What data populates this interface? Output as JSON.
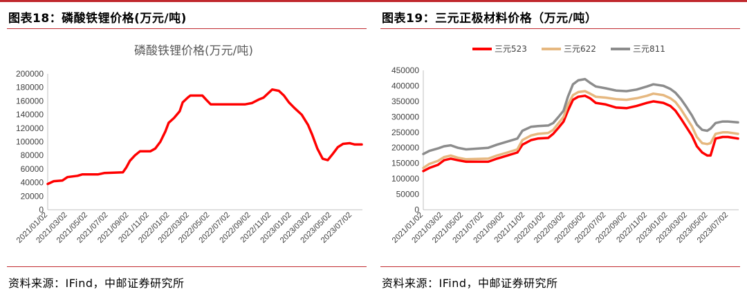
{
  "left_panel": {
    "heading": "图表18：磷酸铁锂价格(万元/吨)",
    "source": "资料来源：IFind，中邮证券研究所"
  },
  "right_panel": {
    "heading": "图表19：三元正极材料价格（万元/吨）",
    "source": "资料来源：IFind，中邮证券研究所"
  },
  "colors": {
    "accent_rule": "#c0282d",
    "ncm523": "#ff0000",
    "ncm622": "#e6b880",
    "ncm811": "#8c8c8c",
    "lfp": "#ff0000"
  },
  "chart_data": [
    {
      "type": "line",
      "title": "磷酸铁锂价格(万元/吨)",
      "xlabel": "",
      "ylabel": "",
      "ylim": [
        0,
        200000
      ],
      "yticks": [
        0,
        20000,
        40000,
        60000,
        80000,
        100000,
        120000,
        140000,
        160000,
        180000,
        200000
      ],
      "xticks": [
        "2021/01/02",
        "2021/03/02",
        "2021/05/02",
        "2021/07/02",
        "2021/09/02",
        "2021/11/02",
        "2022/01/02",
        "2022/03/02",
        "2022/05/02",
        "2022/07/02",
        "2022/09/02",
        "2022/11/02",
        "2023/01/02",
        "2023/03/02",
        "2023/05/02",
        "2023/07/02"
      ],
      "x_range": [
        "2021/01/02",
        "2023/08/02"
      ],
      "grid": false,
      "legend": "none",
      "series": [
        {
          "values": [
            [
              "2021/01/02",
              38000
            ],
            [
              "2021/01/20",
              42000
            ],
            [
              "2021/02/15",
              43000
            ],
            [
              "2021/03/02",
              48000
            ],
            [
              "2021/04/01",
              50000
            ],
            [
              "2021/04/15",
              52000
            ],
            [
              "2021/06/01",
              52000
            ],
            [
              "2021/06/20",
              54000
            ],
            [
              "2021/08/15",
              55000
            ],
            [
              "2021/08/25",
              62000
            ],
            [
              "2021/09/05",
              72000
            ],
            [
              "2021/09/20",
              80000
            ],
            [
              "2021/10/05",
              86000
            ],
            [
              "2021/11/05",
              86000
            ],
            [
              "2021/11/20",
              90000
            ],
            [
              "2021/12/05",
              100000
            ],
            [
              "2021/12/20",
              115000
            ],
            [
              "2021/12/30",
              128000
            ],
            [
              "2022/01/15",
              135000
            ],
            [
              "2022/02/01",
              145000
            ],
            [
              "2022/02/10",
              158000
            ],
            [
              "2022/02/25",
              165000
            ],
            [
              "2022/03/05",
              168000
            ],
            [
              "2022/04/10",
              168000
            ],
            [
              "2022/04/25",
              160000
            ],
            [
              "2022/05/05",
              155000
            ],
            [
              "2022/07/01",
              155000
            ],
            [
              "2022/08/15",
              155000
            ],
            [
              "2022/09/05",
              157000
            ],
            [
              "2022/09/25",
              162000
            ],
            [
              "2022/10/10",
              165000
            ],
            [
              "2022/10/25",
              172000
            ],
            [
              "2022/11/05",
              177000
            ],
            [
              "2022/11/25",
              175000
            ],
            [
              "2022/12/10",
              168000
            ],
            [
              "2022/12/25",
              158000
            ],
            [
              "2023/01/10",
              150000
            ],
            [
              "2023/02/01",
              140000
            ],
            [
              "2023/02/20",
              125000
            ],
            [
              "2023/03/05",
              110000
            ],
            [
              "2023/03/20",
              90000
            ],
            [
              "2023/04/05",
              75000
            ],
            [
              "2023/04/20",
              73000
            ],
            [
              "2023/05/05",
              82000
            ],
            [
              "2023/05/20",
              92000
            ],
            [
              "2023/06/05",
              97000
            ],
            [
              "2023/06/25",
              98000
            ],
            [
              "2023/07/10",
              96000
            ],
            [
              "2023/07/31",
              96000
            ]
          ]
        }
      ]
    },
    {
      "type": "line",
      "title": "",
      "xlabel": "",
      "ylabel": "",
      "ylim": [
        0,
        450000
      ],
      "yticks": [
        0,
        50000,
        100000,
        150000,
        200000,
        250000,
        300000,
        350000,
        400000,
        450000
      ],
      "xticks": [
        "2021/01/02",
        "2021/03/02",
        "2021/05/02",
        "2021/07/02",
        "2021/09/02",
        "2021/11/02",
        "2022/01/02",
        "2022/03/02",
        "2022/05/02",
        "2022/07/02",
        "2022/09/02",
        "2022/11/02",
        "2023/01/02",
        "2023/03/02",
        "2023/05/02",
        "2023/07/02"
      ],
      "x_range": [
        "2021/01/02",
        "2023/08/02"
      ],
      "grid": false,
      "legend": "top",
      "series": [
        {
          "name": "三元523",
          "values": [
            [
              "2021/01/02",
              125000
            ],
            [
              "2021/01/20",
              135000
            ],
            [
              "2021/02/15",
              145000
            ],
            [
              "2021/03/05",
              160000
            ],
            [
              "2021/03/25",
              165000
            ],
            [
              "2021/04/15",
              160000
            ],
            [
              "2021/05/10",
              155000
            ],
            [
              "2021/07/15",
              155000
            ],
            [
              "2021/08/10",
              165000
            ],
            [
              "2021/09/10",
              175000
            ],
            [
              "2021/10/10",
              185000
            ],
            [
              "2021/10/25",
              210000
            ],
            [
              "2021/11/20",
              225000
            ],
            [
              "2021/12/10",
              230000
            ],
            [
              "2022/01/10",
              232000
            ],
            [
              "2022/01/25",
              245000
            ],
            [
              "2022/02/10",
              265000
            ],
            [
              "2022/02/25",
              285000
            ],
            [
              "2022/03/10",
              320000
            ],
            [
              "2022/03/25",
              355000
            ],
            [
              "2022/04/10",
              365000
            ],
            [
              "2022/04/30",
              368000
            ],
            [
              "2022/05/15",
              360000
            ],
            [
              "2022/06/01",
              345000
            ],
            [
              "2022/07/01",
              340000
            ],
            [
              "2022/08/01",
              330000
            ],
            [
              "2022/09/01",
              328000
            ],
            [
              "2022/10/01",
              335000
            ],
            [
              "2022/11/01",
              345000
            ],
            [
              "2022/11/20",
              350000
            ],
            [
              "2022/12/20",
              345000
            ],
            [
              "2023/01/10",
              335000
            ],
            [
              "2023/01/25",
              320000
            ],
            [
              "2023/02/10",
              295000
            ],
            [
              "2023/02/25",
              270000
            ],
            [
              "2023/03/15",
              240000
            ],
            [
              "2023/03/30",
              205000
            ],
            [
              "2023/04/15",
              185000
            ],
            [
              "2023/04/30",
              175000
            ],
            [
              "2023/05/10",
              175000
            ],
            [
              "2023/05/25",
              230000
            ],
            [
              "2023/06/15",
              235000
            ],
            [
              "2023/07/01",
              235000
            ],
            [
              "2023/07/31",
              230000
            ]
          ]
        },
        {
          "name": "三元622",
          "values": [
            [
              "2021/01/02",
              135000
            ],
            [
              "2021/01/20",
              148000
            ],
            [
              "2021/02/15",
              158000
            ],
            [
              "2021/03/05",
              170000
            ],
            [
              "2021/03/25",
              175000
            ],
            [
              "2021/04/15",
              168000
            ],
            [
              "2021/05/10",
              163000
            ],
            [
              "2021/07/15",
              165000
            ],
            [
              "2021/08/10",
              175000
            ],
            [
              "2021/09/10",
              185000
            ],
            [
              "2021/10/10",
              195000
            ],
            [
              "2021/10/25",
              225000
            ],
            [
              "2021/11/20",
              240000
            ],
            [
              "2021/12/10",
              245000
            ],
            [
              "2022/01/10",
              248000
            ],
            [
              "2022/01/25",
              258000
            ],
            [
              "2022/02/10",
              280000
            ],
            [
              "2022/02/25",
              300000
            ],
            [
              "2022/03/10",
              340000
            ],
            [
              "2022/03/25",
              370000
            ],
            [
              "2022/04/10",
              380000
            ],
            [
              "2022/04/30",
              383000
            ],
            [
              "2022/05/15",
              375000
            ],
            [
              "2022/06/01",
              365000
            ],
            [
              "2022/07/01",
              362000
            ],
            [
              "2022/08/01",
              357000
            ],
            [
              "2022/09/01",
              355000
            ],
            [
              "2022/10/01",
              360000
            ],
            [
              "2022/11/01",
              368000
            ],
            [
              "2022/11/20",
              375000
            ],
            [
              "2022/12/20",
              370000
            ],
            [
              "2023/01/10",
              360000
            ],
            [
              "2023/01/25",
              348000
            ],
            [
              "2023/02/10",
              325000
            ],
            [
              "2023/02/25",
              300000
            ],
            [
              "2023/03/15",
              270000
            ],
            [
              "2023/03/30",
              235000
            ],
            [
              "2023/04/15",
              215000
            ],
            [
              "2023/04/30",
              212000
            ],
            [
              "2023/05/10",
              215000
            ],
            [
              "2023/05/25",
              245000
            ],
            [
              "2023/06/15",
              250000
            ],
            [
              "2023/07/01",
              250000
            ],
            [
              "2023/07/31",
              245000
            ]
          ]
        },
        {
          "name": "三元811",
          "values": [
            [
              "2021/01/02",
              180000
            ],
            [
              "2021/01/20",
              190000
            ],
            [
              "2021/02/15",
              198000
            ],
            [
              "2021/03/05",
              205000
            ],
            [
              "2021/03/25",
              208000
            ],
            [
              "2021/04/15",
              200000
            ],
            [
              "2021/05/10",
              195000
            ],
            [
              "2021/07/15",
              200000
            ],
            [
              "2021/08/10",
              210000
            ],
            [
              "2021/09/10",
              220000
            ],
            [
              "2021/10/10",
              230000
            ],
            [
              "2021/10/25",
              255000
            ],
            [
              "2021/11/20",
              268000
            ],
            [
              "2021/12/10",
              270000
            ],
            [
              "2022/01/10",
              272000
            ],
            [
              "2022/01/25",
              280000
            ],
            [
              "2022/02/10",
              300000
            ],
            [
              "2022/02/25",
              320000
            ],
            [
              "2022/03/10",
              365000
            ],
            [
              "2022/03/25",
              405000
            ],
            [
              "2022/04/10",
              418000
            ],
            [
              "2022/04/30",
              422000
            ],
            [
              "2022/05/15",
              410000
            ],
            [
              "2022/06/01",
              398000
            ],
            [
              "2022/07/01",
              392000
            ],
            [
              "2022/08/01",
              385000
            ],
            [
              "2022/09/01",
              383000
            ],
            [
              "2022/10/01",
              388000
            ],
            [
              "2022/11/01",
              398000
            ],
            [
              "2022/11/20",
              405000
            ],
            [
              "2022/12/20",
              400000
            ],
            [
              "2023/01/10",
              390000
            ],
            [
              "2023/01/25",
              378000
            ],
            [
              "2023/02/10",
              358000
            ],
            [
              "2023/02/25",
              335000
            ],
            [
              "2023/03/15",
              305000
            ],
            [
              "2023/03/30",
              275000
            ],
            [
              "2023/04/15",
              258000
            ],
            [
              "2023/04/30",
              255000
            ],
            [
              "2023/05/10",
              262000
            ],
            [
              "2023/05/25",
              280000
            ],
            [
              "2023/06/15",
              285000
            ],
            [
              "2023/07/01",
              285000
            ],
            [
              "2023/07/31",
              282000
            ]
          ]
        }
      ]
    }
  ]
}
